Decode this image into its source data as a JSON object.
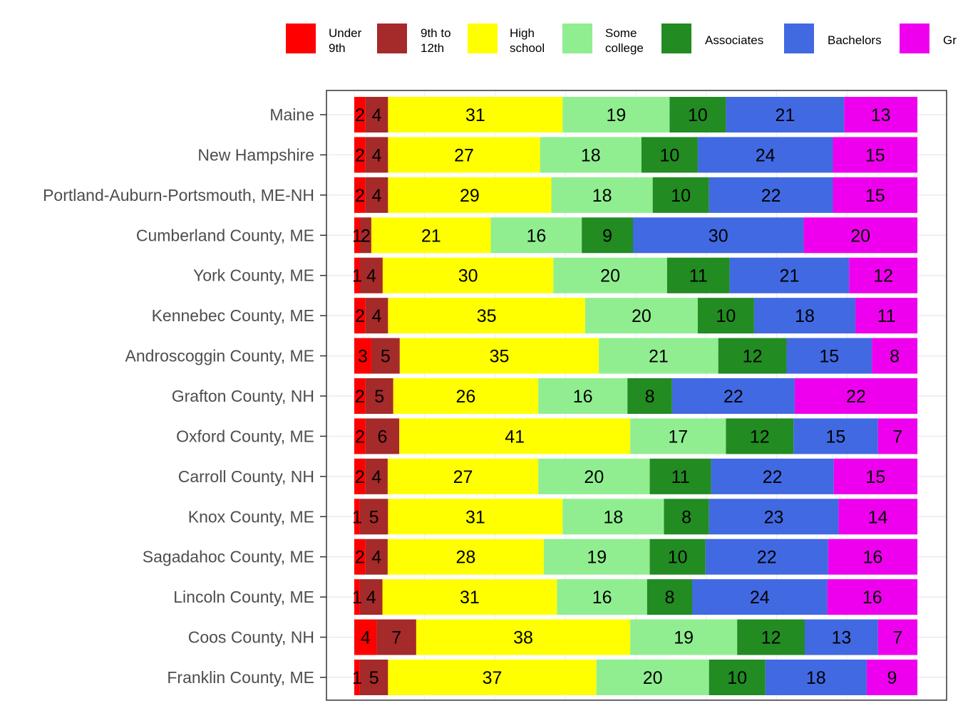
{
  "chart_data": {
    "type": "bar",
    "orientation": "horizontal",
    "stacked": true,
    "normalized_percent": true,
    "grid": true,
    "legend_position": "top",
    "categories": [
      "Maine",
      "New Hampshire",
      "Portland-Auburn-Portsmouth, ME-NH",
      "Cumberland County, ME",
      "York County, ME",
      "Kennebec County, ME",
      "Androscoggin County, ME",
      "Grafton County, NH",
      "Oxford County, ME",
      "Carroll County, NH",
      "Knox County, ME",
      "Sagadahoc County, ME",
      "Lincoln County, ME",
      "Coos County, NH",
      "Franklin County, ME"
    ],
    "series": [
      {
        "name": [
          "Under",
          "9th"
        ],
        "color": "#FF0000",
        "values": [
          2,
          2,
          2,
          1,
          1,
          2,
          3,
          2,
          2,
          2,
          1,
          2,
          1,
          4,
          1
        ]
      },
      {
        "name": [
          "9th to",
          "12th"
        ],
        "color": "#A52A2A",
        "values": [
          4,
          4,
          4,
          2,
          4,
          4,
          5,
          5,
          6,
          4,
          5,
          4,
          4,
          7,
          5
        ]
      },
      {
        "name": [
          "High",
          "school"
        ],
        "color": "#FFFF00",
        "values": [
          31,
          27,
          29,
          21,
          30,
          35,
          35,
          26,
          41,
          27,
          31,
          28,
          31,
          38,
          37
        ]
      },
      {
        "name": [
          "Some",
          "college"
        ],
        "color": "#90EE90",
        "values": [
          19,
          18,
          18,
          16,
          20,
          20,
          21,
          16,
          17,
          20,
          18,
          19,
          16,
          19,
          20
        ]
      },
      {
        "name": [
          "Associates"
        ],
        "color": "#228B22",
        "values": [
          10,
          10,
          10,
          9,
          11,
          10,
          12,
          8,
          12,
          11,
          8,
          10,
          8,
          12,
          10
        ]
      },
      {
        "name": [
          "Bachelors"
        ],
        "color": "#4169E1",
        "values": [
          21,
          24,
          22,
          30,
          21,
          18,
          15,
          22,
          15,
          22,
          23,
          22,
          24,
          13,
          18
        ]
      },
      {
        "name": [
          "Gr"
        ],
        "color": "#EE00EE",
        "values": [
          13,
          15,
          15,
          20,
          12,
          11,
          8,
          22,
          7,
          15,
          14,
          16,
          16,
          7,
          9
        ]
      }
    ]
  }
}
